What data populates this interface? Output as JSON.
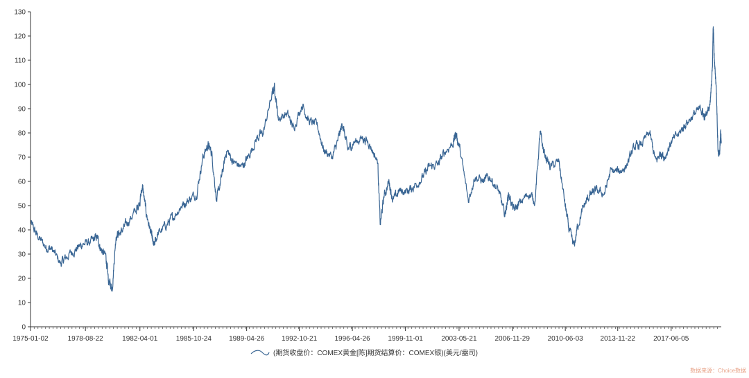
{
  "chart_data": {
    "type": "line",
    "title": "",
    "xlabel": "",
    "ylabel": "",
    "x_range": [
      "1975-01-02",
      "2020-09-30"
    ],
    "ylim": [
      0,
      130
    ],
    "y_ticks": [
      0,
      10,
      20,
      30,
      40,
      50,
      60,
      70,
      80,
      90,
      100,
      110,
      120,
      130
    ],
    "x_tick_labels": [
      "1975-01-02",
      "1978-08-22",
      "1982-04-01",
      "1985-10-24",
      "1989-04-26",
      "1992-10-21",
      "1996-04-26",
      "1999-11-01",
      "2003-05-21",
      "2006-11-29",
      "2010-06-03",
      "2013-11-22",
      "2017-06-05"
    ],
    "grid": false,
    "legend_position": "bottom-center",
    "series_color": "#3a6694",
    "series": [
      {
        "name": "(期货收盘价：COMEX黄金[陈]期货结算价：COMEX银)(美元/盎司)",
        "points": [
          [
            "1975-01-02",
            43
          ],
          [
            "1975-06-01",
            38
          ],
          [
            "1976-01-01",
            33
          ],
          [
            "1976-06-01",
            32
          ],
          [
            "1977-01-01",
            26
          ],
          [
            "1977-06-01",
            29
          ],
          [
            "1978-01-01",
            32
          ],
          [
            "1978-06-01",
            34
          ],
          [
            "1979-01-01",
            35
          ],
          [
            "1979-06-01",
            37
          ],
          [
            "1979-09-01",
            32
          ],
          [
            "1980-01-01",
            29
          ],
          [
            "1980-03-01",
            19
          ],
          [
            "1980-06-01",
            16
          ],
          [
            "1980-09-01",
            38
          ],
          [
            "1981-01-01",
            39
          ],
          [
            "1981-06-01",
            43
          ],
          [
            "1982-01-01",
            48
          ],
          [
            "1982-04-01",
            52
          ],
          [
            "1982-06-01",
            58
          ],
          [
            "1982-09-01",
            47
          ],
          [
            "1983-01-01",
            38
          ],
          [
            "1983-03-01",
            33
          ],
          [
            "1983-06-01",
            38
          ],
          [
            "1984-01-01",
            42
          ],
          [
            "1984-06-01",
            45
          ],
          [
            "1985-01-01",
            50
          ],
          [
            "1985-06-01",
            52
          ],
          [
            "1986-01-01",
            55
          ],
          [
            "1986-06-01",
            70
          ],
          [
            "1986-10-01",
            75
          ],
          [
            "1987-01-01",
            72
          ],
          [
            "1987-05-01",
            52
          ],
          [
            "1987-09-01",
            62
          ],
          [
            "1988-01-01",
            73
          ],
          [
            "1988-06-01",
            68
          ],
          [
            "1989-01-01",
            66
          ],
          [
            "1989-06-01",
            70
          ],
          [
            "1990-01-01",
            78
          ],
          [
            "1990-06-01",
            80
          ],
          [
            "1991-01-01",
            96
          ],
          [
            "1991-03-01",
            99
          ],
          [
            "1991-06-01",
            86
          ],
          [
            "1992-01-01",
            88
          ],
          [
            "1992-06-01",
            82
          ],
          [
            "1993-01-01",
            92
          ],
          [
            "1993-06-01",
            85
          ],
          [
            "1994-01-01",
            83
          ],
          [
            "1994-06-01",
            73
          ],
          [
            "1995-01-01",
            70
          ],
          [
            "1995-06-01",
            78
          ],
          [
            "1995-09-01",
            84
          ],
          [
            "1996-01-01",
            73
          ],
          [
            "1996-06-01",
            76
          ],
          [
            "1997-01-01",
            78
          ],
          [
            "1997-06-01",
            76
          ],
          [
            "1998-01-01",
            68
          ],
          [
            "1998-03-01",
            42
          ],
          [
            "1998-06-01",
            54
          ],
          [
            "1998-10-01",
            60
          ],
          [
            "1999-01-01",
            52
          ],
          [
            "1999-06-01",
            56
          ],
          [
            "2000-01-01",
            56
          ],
          [
            "2000-06-01",
            58
          ],
          [
            "2001-01-01",
            62
          ],
          [
            "2001-06-01",
            66
          ],
          [
            "2002-01-01",
            67
          ],
          [
            "2002-06-01",
            72
          ],
          [
            "2003-01-01",
            76
          ],
          [
            "2003-03-01",
            80
          ],
          [
            "2003-06-01",
            74
          ],
          [
            "2004-01-01",
            52
          ],
          [
            "2004-06-01",
            62
          ],
          [
            "2005-01-01",
            60
          ],
          [
            "2005-06-01",
            62
          ],
          [
            "2006-01-01",
            56
          ],
          [
            "2006-06-01",
            46
          ],
          [
            "2006-09-01",
            55
          ],
          [
            "2007-01-01",
            48
          ],
          [
            "2007-06-01",
            51
          ],
          [
            "2008-01-01",
            55
          ],
          [
            "2008-06-01",
            52
          ],
          [
            "2008-10-01",
            80
          ],
          [
            "2009-01-01",
            72
          ],
          [
            "2009-06-01",
            66
          ],
          [
            "2010-01-01",
            68
          ],
          [
            "2010-06-01",
            50
          ],
          [
            "2010-09-01",
            40
          ],
          [
            "2011-01-01",
            33
          ],
          [
            "2011-04-01",
            42
          ],
          [
            "2011-09-01",
            50
          ],
          [
            "2012-01-01",
            54
          ],
          [
            "2012-06-01",
            56
          ],
          [
            "2013-01-01",
            55
          ],
          [
            "2013-06-01",
            64
          ],
          [
            "2014-01-01",
            64
          ],
          [
            "2014-06-01",
            66
          ],
          [
            "2015-01-01",
            74
          ],
          [
            "2015-06-01",
            75
          ],
          [
            "2016-01-01",
            80
          ],
          [
            "2016-06-01",
            68
          ],
          [
            "2016-10-01",
            72
          ],
          [
            "2017-01-01",
            70
          ],
          [
            "2017-06-01",
            76
          ],
          [
            "2018-01-01",
            80
          ],
          [
            "2018-06-01",
            84
          ],
          [
            "2019-01-01",
            88
          ],
          [
            "2019-06-01",
            90
          ],
          [
            "2019-09-01",
            86
          ],
          [
            "2020-01-01",
            92
          ],
          [
            "2020-03-01",
            108
          ],
          [
            "2020-03-20",
            125
          ],
          [
            "2020-04-15",
            110
          ],
          [
            "2020-06-01",
            99
          ],
          [
            "2020-07-15",
            73
          ],
          [
            "2020-08-15",
            70
          ],
          [
            "2020-09-15",
            80
          ],
          [
            "2020-09-30",
            76
          ]
        ]
      }
    ],
    "source_note": "数据来源：Choice数据"
  }
}
